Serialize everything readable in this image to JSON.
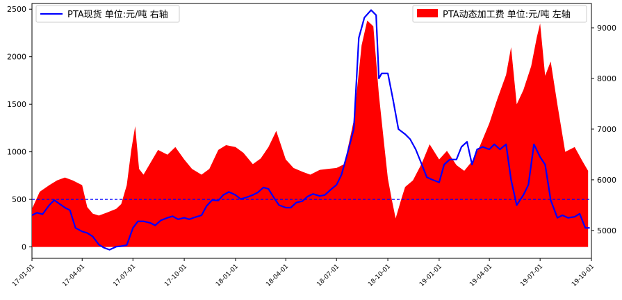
{
  "chart_data": {
    "type": "area+line",
    "x_tick_labels": [
      "17-01-01",
      "17-04-01",
      "17-07-01",
      "17-10-01",
      "18-01-01",
      "18-04-01",
      "18-07-01",
      "18-10-01",
      "19-01-01",
      "19-04-01",
      "19-07-01",
      "19-10-01"
    ],
    "x_range": [
      "2017-01-01",
      "2019-10-01"
    ],
    "y_left": {
      "range": [
        -120,
        2560
      ],
      "ticks": [
        0,
        500,
        1000,
        1500,
        2000,
        2500
      ]
    },
    "y_right": {
      "range": [
        4450,
        9480
      ],
      "ticks": [
        5000,
        6000,
        7000,
        8000,
        9000
      ]
    },
    "reference_line": {
      "axis": "left",
      "value": 500,
      "color": "#0000ff",
      "style": "dashed"
    },
    "series": [
      {
        "name": "PTA动态加工费 单位:元/吨 左轴",
        "kind": "area",
        "axis": "left",
        "color": "#ff0000",
        "legend_position": "top-right",
        "points": [
          [
            "2017-01-01",
            400
          ],
          [
            "2017-01-15",
            580
          ],
          [
            "2017-02-01",
            650
          ],
          [
            "2017-02-15",
            700
          ],
          [
            "2017-03-01",
            730
          ],
          [
            "2017-03-15",
            700
          ],
          [
            "2017-04-01",
            650
          ],
          [
            "2017-04-10",
            420
          ],
          [
            "2017-04-20",
            350
          ],
          [
            "2017-05-01",
            330
          ],
          [
            "2017-05-15",
            360
          ],
          [
            "2017-06-01",
            400
          ],
          [
            "2017-06-10",
            450
          ],
          [
            "2017-06-20",
            650
          ],
          [
            "2017-06-28",
            1020
          ],
          [
            "2017-07-05",
            1270
          ],
          [
            "2017-07-12",
            820
          ],
          [
            "2017-07-20",
            760
          ],
          [
            "2017-08-01",
            880
          ],
          [
            "2017-08-15",
            1020
          ],
          [
            "2017-09-01",
            970
          ],
          [
            "2017-09-15",
            1050
          ],
          [
            "2017-10-01",
            920
          ],
          [
            "2017-10-15",
            820
          ],
          [
            "2017-11-01",
            760
          ],
          [
            "2017-11-15",
            820
          ],
          [
            "2017-12-01",
            1020
          ],
          [
            "2017-12-15",
            1070
          ],
          [
            "2018-01-01",
            1050
          ],
          [
            "2018-01-15",
            990
          ],
          [
            "2018-02-01",
            870
          ],
          [
            "2018-02-15",
            930
          ],
          [
            "2018-03-01",
            1050
          ],
          [
            "2018-03-15",
            1220
          ],
          [
            "2018-04-01",
            920
          ],
          [
            "2018-04-15",
            830
          ],
          [
            "2018-05-01",
            790
          ],
          [
            "2018-05-15",
            760
          ],
          [
            "2018-06-01",
            810
          ],
          [
            "2018-06-15",
            820
          ],
          [
            "2018-07-01",
            830
          ],
          [
            "2018-07-15",
            870
          ],
          [
            "2018-08-01",
            1330
          ],
          [
            "2018-08-15",
            2120
          ],
          [
            "2018-08-25",
            2380
          ],
          [
            "2018-09-05",
            2320
          ],
          [
            "2018-09-15",
            1600
          ],
          [
            "2018-09-25",
            1050
          ],
          [
            "2018-10-01",
            720
          ],
          [
            "2018-10-08",
            500
          ],
          [
            "2018-10-15",
            300
          ],
          [
            "2018-10-25",
            500
          ],
          [
            "2018-11-01",
            630
          ],
          [
            "2018-11-15",
            700
          ],
          [
            "2018-12-01",
            880
          ],
          [
            "2018-12-15",
            1080
          ],
          [
            "2019-01-01",
            920
          ],
          [
            "2019-01-15",
            1010
          ],
          [
            "2019-02-01",
            860
          ],
          [
            "2019-02-15",
            800
          ],
          [
            "2019-03-01",
            900
          ],
          [
            "2019-03-15",
            1060
          ],
          [
            "2019-04-01",
            1300
          ],
          [
            "2019-04-15",
            1550
          ],
          [
            "2019-05-01",
            1810
          ],
          [
            "2019-05-10",
            2100
          ],
          [
            "2019-05-20",
            1500
          ],
          [
            "2019-06-01",
            1650
          ],
          [
            "2019-06-15",
            1900
          ],
          [
            "2019-06-25",
            2200
          ],
          [
            "2019-07-01",
            2350
          ],
          [
            "2019-07-10",
            1800
          ],
          [
            "2019-07-20",
            1950
          ],
          [
            "2019-08-01",
            1500
          ],
          [
            "2019-08-15",
            1000
          ],
          [
            "2019-09-01",
            1050
          ],
          [
            "2019-09-15",
            900
          ],
          [
            "2019-09-25",
            800
          ]
        ]
      },
      {
        "name": "PTA现货 单位:元/吨 右轴",
        "kind": "line",
        "axis": "right",
        "color": "#0000ff",
        "legend_position": "top-left",
        "points": [
          [
            "2017-01-01",
            5300
          ],
          [
            "2017-01-10",
            5350
          ],
          [
            "2017-01-20",
            5320
          ],
          [
            "2017-02-01",
            5500
          ],
          [
            "2017-02-10",
            5600
          ],
          [
            "2017-02-20",
            5520
          ],
          [
            "2017-03-01",
            5450
          ],
          [
            "2017-03-10",
            5400
          ],
          [
            "2017-03-20",
            5050
          ],
          [
            "2017-04-01",
            4980
          ],
          [
            "2017-04-10",
            4950
          ],
          [
            "2017-04-20",
            4880
          ],
          [
            "2017-05-01",
            4720
          ],
          [
            "2017-05-10",
            4660
          ],
          [
            "2017-05-20",
            4620
          ],
          [
            "2017-06-01",
            4680
          ],
          [
            "2017-06-10",
            4690
          ],
          [
            "2017-06-20",
            4710
          ],
          [
            "2017-07-01",
            5050
          ],
          [
            "2017-07-10",
            5180
          ],
          [
            "2017-07-20",
            5180
          ],
          [
            "2017-08-01",
            5150
          ],
          [
            "2017-08-10",
            5100
          ],
          [
            "2017-08-20",
            5200
          ],
          [
            "2017-09-01",
            5250
          ],
          [
            "2017-09-10",
            5280
          ],
          [
            "2017-09-20",
            5220
          ],
          [
            "2017-10-01",
            5250
          ],
          [
            "2017-10-10",
            5220
          ],
          [
            "2017-10-20",
            5260
          ],
          [
            "2017-11-01",
            5300
          ],
          [
            "2017-11-10",
            5480
          ],
          [
            "2017-11-20",
            5600
          ],
          [
            "2017-12-01",
            5590
          ],
          [
            "2017-12-10",
            5700
          ],
          [
            "2017-12-20",
            5760
          ],
          [
            "2018-01-01",
            5700
          ],
          [
            "2018-01-10",
            5620
          ],
          [
            "2018-01-20",
            5650
          ],
          [
            "2018-02-01",
            5700
          ],
          [
            "2018-02-10",
            5750
          ],
          [
            "2018-02-20",
            5850
          ],
          [
            "2018-03-01",
            5820
          ],
          [
            "2018-03-10",
            5660
          ],
          [
            "2018-03-20",
            5500
          ],
          [
            "2018-04-01",
            5450
          ],
          [
            "2018-04-10",
            5450
          ],
          [
            "2018-04-20",
            5550
          ],
          [
            "2018-05-01",
            5580
          ],
          [
            "2018-05-10",
            5670
          ],
          [
            "2018-05-20",
            5720
          ],
          [
            "2018-06-01",
            5680
          ],
          [
            "2018-06-10",
            5700
          ],
          [
            "2018-06-20",
            5800
          ],
          [
            "2018-07-01",
            5900
          ],
          [
            "2018-07-10",
            6100
          ],
          [
            "2018-07-20",
            6500
          ],
          [
            "2018-08-01",
            7000
          ],
          [
            "2018-08-10",
            8800
          ],
          [
            "2018-08-20",
            9200
          ],
          [
            "2018-09-01",
            9350
          ],
          [
            "2018-09-10",
            9250
          ],
          [
            "2018-09-15",
            8000
          ],
          [
            "2018-09-20",
            8100
          ],
          [
            "2018-10-01",
            8100
          ],
          [
            "2018-10-10",
            7600
          ],
          [
            "2018-10-20",
            7000
          ],
          [
            "2018-11-01",
            6900
          ],
          [
            "2018-11-10",
            6800
          ],
          [
            "2018-11-20",
            6600
          ],
          [
            "2018-12-01",
            6300
          ],
          [
            "2018-12-10",
            6050
          ],
          [
            "2018-12-20",
            6000
          ],
          [
            "2019-01-01",
            5950
          ],
          [
            "2019-01-10",
            6300
          ],
          [
            "2019-01-20",
            6400
          ],
          [
            "2019-02-01",
            6400
          ],
          [
            "2019-02-10",
            6650
          ],
          [
            "2019-02-20",
            6750
          ],
          [
            "2019-03-01",
            6300
          ],
          [
            "2019-03-10",
            6600
          ],
          [
            "2019-03-20",
            6650
          ],
          [
            "2019-04-01",
            6600
          ],
          [
            "2019-04-10",
            6700
          ],
          [
            "2019-04-20",
            6600
          ],
          [
            "2019-05-01",
            6700
          ],
          [
            "2019-05-10",
            6000
          ],
          [
            "2019-05-20",
            5500
          ],
          [
            "2019-06-01",
            5700
          ],
          [
            "2019-06-10",
            5900
          ],
          [
            "2019-06-20",
            6700
          ],
          [
            "2019-07-01",
            6450
          ],
          [
            "2019-07-10",
            6300
          ],
          [
            "2019-07-20",
            5600
          ],
          [
            "2019-08-01",
            5250
          ],
          [
            "2019-08-10",
            5300
          ],
          [
            "2019-08-20",
            5250
          ],
          [
            "2019-09-01",
            5270
          ],
          [
            "2019-09-10",
            5330
          ],
          [
            "2019-09-20",
            5050
          ],
          [
            "2019-09-28",
            5050
          ]
        ]
      }
    ]
  }
}
